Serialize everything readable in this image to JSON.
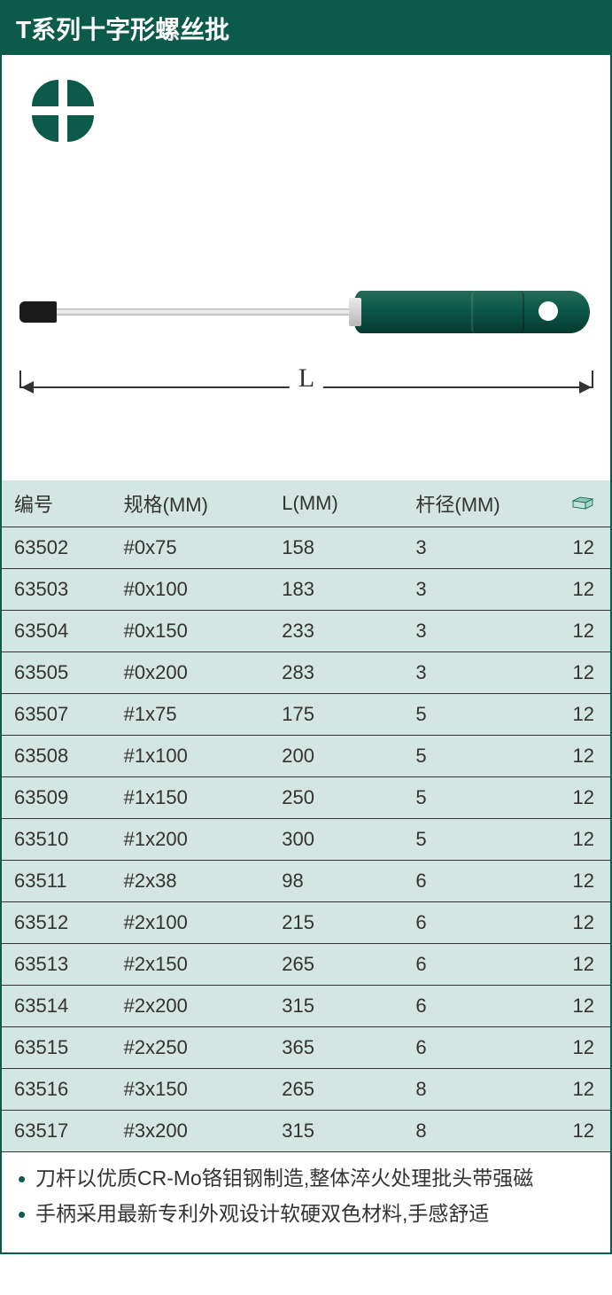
{
  "title": "T系列十字形螺丝批",
  "colors": {
    "primary": "#0c5a4a",
    "table_bg": "#d3e6e1",
    "rule": "#333333",
    "text": "#333333",
    "white": "#ffffff"
  },
  "dimension_label": "L",
  "table": {
    "columns": [
      "编号",
      "规格(MM)",
      "L(MM)",
      "杆径(MM)",
      ""
    ],
    "column_widths_pct": [
      18,
      26,
      22,
      22,
      12
    ],
    "header_icon": "box-icon",
    "rows": [
      [
        "63502",
        "#0x75",
        "158",
        "3",
        "12"
      ],
      [
        "63503",
        "#0x100",
        "183",
        "3",
        "12"
      ],
      [
        "63504",
        "#0x150",
        "233",
        "3",
        "12"
      ],
      [
        "63505",
        "#0x200",
        "283",
        "3",
        "12"
      ],
      [
        "63507",
        "#1x75",
        "175",
        "5",
        "12"
      ],
      [
        "63508",
        "#1x100",
        "200",
        "5",
        "12"
      ],
      [
        "63509",
        "#1x150",
        "250",
        "5",
        "12"
      ],
      [
        "63510",
        "#1x200",
        "300",
        "5",
        "12"
      ],
      [
        "63511",
        "#2x38",
        "98",
        "6",
        "12"
      ],
      [
        "63512",
        "#2x100",
        "215",
        "6",
        "12"
      ],
      [
        "63513",
        "#2x150",
        "265",
        "6",
        "12"
      ],
      [
        "63514",
        "#2x200",
        "315",
        "6",
        "12"
      ],
      [
        "63515",
        "#2x250",
        "365",
        "6",
        "12"
      ],
      [
        "63516",
        "#3x150",
        "265",
        "8",
        "12"
      ],
      [
        "63517",
        "#3x200",
        "315",
        "8",
        "12"
      ]
    ]
  },
  "notes": [
    "刀杆以优质CR-Mo铬钼钢制造,整体淬火处理批头带强磁",
    "手柄采用最新专利外观设计软硬双色材料,手感舒适"
  ]
}
